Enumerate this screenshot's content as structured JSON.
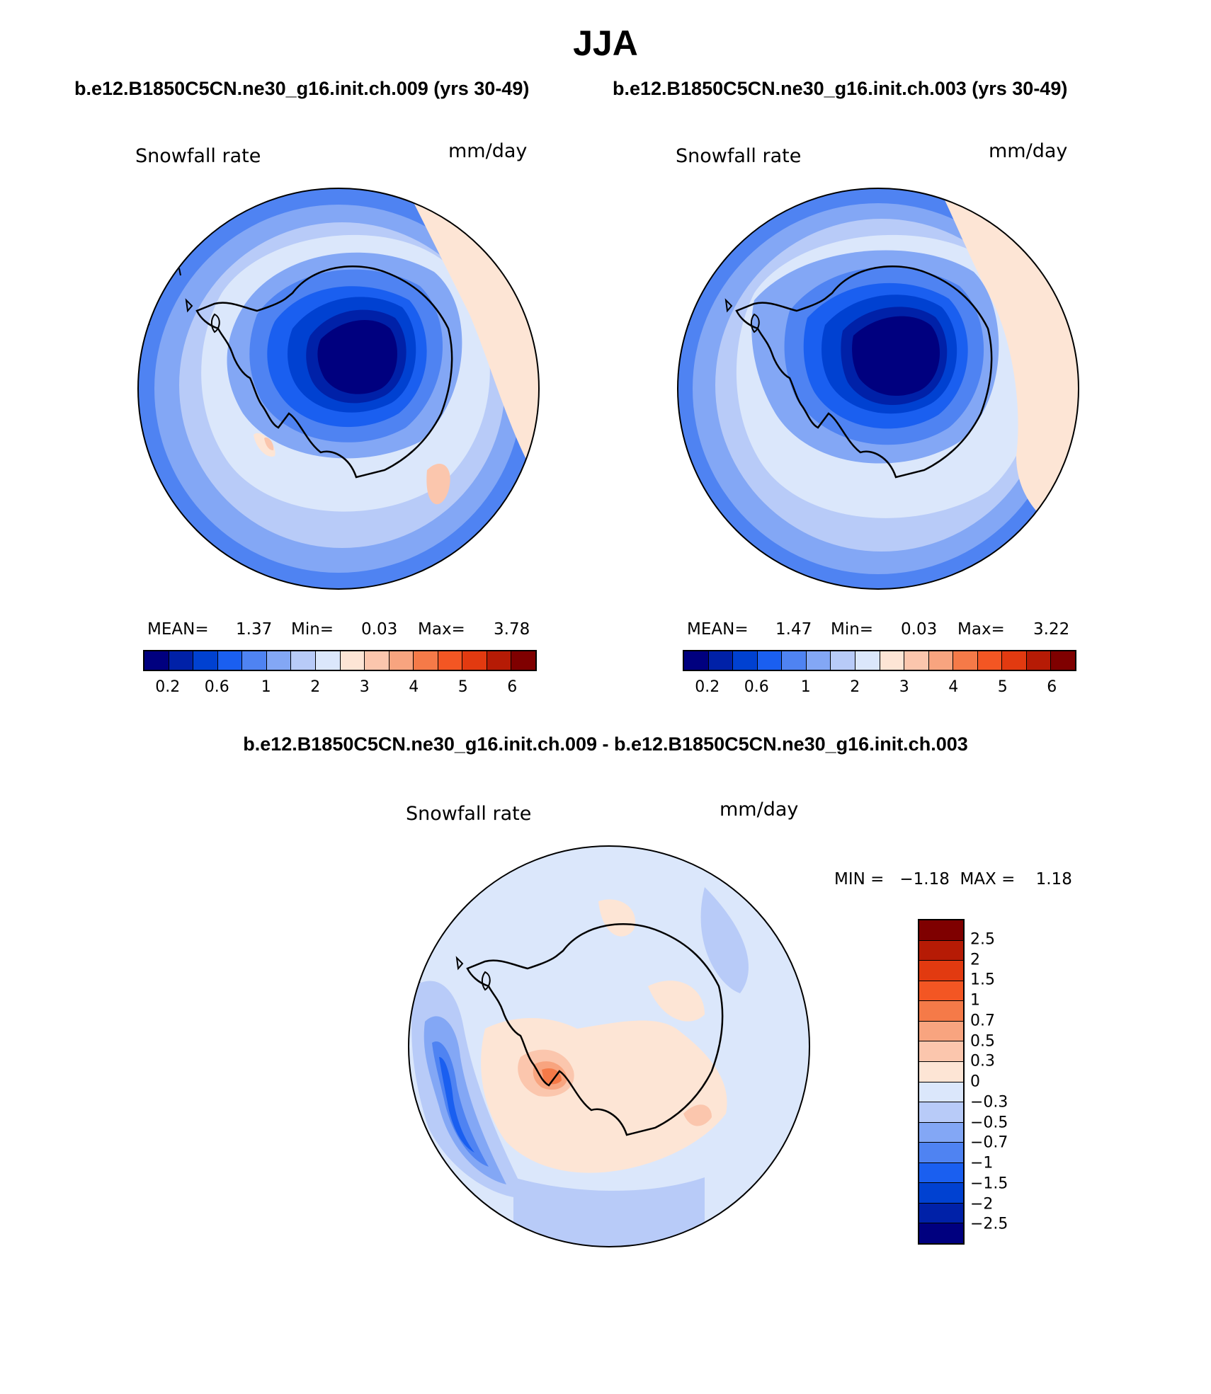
{
  "page_title": "JJA",
  "colors": {
    "abs_scale": [
      "#00007f",
      "#0021a8",
      "#0041d1",
      "#1a5ff0",
      "#4f83f2",
      "#83a7f5",
      "#b8cbf8",
      "#dbe7fb",
      "#fde5d5",
      "#fbc6ad",
      "#f8a47f",
      "#f57a48",
      "#f35623",
      "#e23a10",
      "#b61b05",
      "#7f0000"
    ],
    "diff_scale": [
      "#7f0000",
      "#b61b05",
      "#e23a10",
      "#f35623",
      "#f57a48",
      "#f8a47f",
      "#fbc6ad",
      "#fde5d5",
      "#dbe7fb",
      "#b8cbf8",
      "#83a7f5",
      "#4f83f2",
      "#1a5ff0",
      "#0041d1",
      "#0021a8",
      "#00007f"
    ]
  },
  "panels": [
    {
      "case_title": "b.e12.B1850C5CN.ne30_g16.init.ch.009 (yrs 30-49)",
      "variable_label": "Snowfall rate",
      "units": "mm/day",
      "stats": {
        "mean_label": "MEAN=",
        "mean": "1.37",
        "min_label": "Min=",
        "min": "0.03",
        "max_label": "Max=",
        "max": "3.78"
      },
      "colorbar_ticks": [
        "0.2",
        "0.6",
        "1",
        "2",
        "3",
        "4",
        "5",
        "6"
      ]
    },
    {
      "case_title": "b.e12.B1850C5CN.ne30_g16.init.ch.003 (yrs 30-49)",
      "variable_label": "Snowfall rate",
      "units": "mm/day",
      "stats": {
        "mean_label": "MEAN=",
        "mean": "1.47",
        "min_label": "Min=",
        "min": "0.03",
        "max_label": "Max=",
        "max": "3.22"
      },
      "colorbar_ticks": [
        "0.2",
        "0.6",
        "1",
        "2",
        "3",
        "4",
        "5",
        "6"
      ]
    }
  ],
  "difference": {
    "title": "b.e12.B1850C5CN.ne30_g16.init.ch.009 - b.e12.B1850C5CN.ne30_g16.init.ch.003",
    "variable_label": "Snowfall rate",
    "units": "mm/day",
    "minmax": "MIN =   −1.18  MAX =    1.18",
    "colorbar_ticks": [
      "2.5",
      "2",
      "1.5",
      "1",
      "0.7",
      "0.5",
      "0.3",
      "0",
      "−0.3",
      "−0.5",
      "−0.7",
      "−1",
      "−1.5",
      "−2",
      "−2.5"
    ]
  }
}
